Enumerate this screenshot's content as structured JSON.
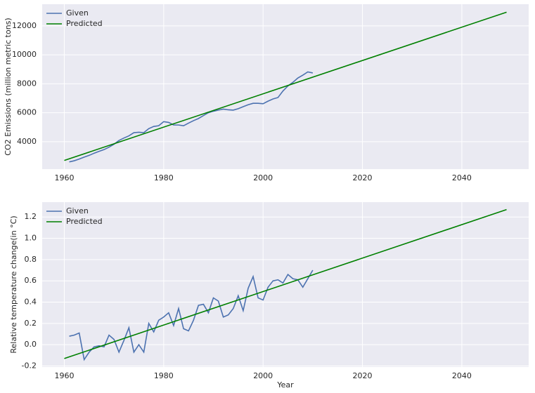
{
  "chart_data": [
    {
      "type": "line",
      "ylabel": "CO2 Emissions (million metric tons)",
      "xlim": [
        1955.55,
        2053.45
      ],
      "xticks": [
        1960,
        1980,
        2000,
        2020,
        2040
      ],
      "ylim": [
        2100,
        13500
      ],
      "yticks": [
        4000,
        6000,
        8000,
        10000,
        12000
      ],
      "grid": true,
      "legend": "upper left",
      "series": [
        {
          "name": "Given",
          "color": "#4c72b0",
          "x": [
            1961,
            1962,
            1963,
            1964,
            1965,
            1966,
            1967,
            1968,
            1969,
            1970,
            1971,
            1972,
            1973,
            1974,
            1975,
            1976,
            1977,
            1978,
            1979,
            1980,
            1981,
            1982,
            1983,
            1984,
            1985,
            1986,
            1987,
            1988,
            1989,
            1990,
            1991,
            1992,
            1993,
            1994,
            1995,
            1996,
            1997,
            1998,
            1999,
            2000,
            2001,
            2002,
            2003,
            2004,
            2005,
            2006,
            2007,
            2008,
            2009,
            2010
          ],
          "values": [
            2600,
            2680,
            2800,
            2930,
            3050,
            3200,
            3330,
            3450,
            3620,
            3820,
            4080,
            4250,
            4400,
            4620,
            4650,
            4620,
            4900,
            5050,
            5100,
            5380,
            5330,
            5150,
            5150,
            5100,
            5280,
            5450,
            5600,
            5800,
            6000,
            6100,
            6180,
            6250,
            6200,
            6180,
            6280,
            6420,
            6550,
            6650,
            6650,
            6620,
            6800,
            6950,
            7050,
            7500,
            7850,
            8100,
            8400,
            8600,
            8820,
            8750
          ]
        },
        {
          "name": "Predicted",
          "color": "#008000",
          "x": [
            1960,
            2049
          ],
          "values": [
            2700,
            12950
          ]
        }
      ]
    },
    {
      "type": "line",
      "xlabel": "Year",
      "ylabel": "Relative temperature change(in °C)",
      "xlim": [
        1955.55,
        2053.45
      ],
      "xticks": [
        1960,
        1980,
        2000,
        2020,
        2040
      ],
      "ylim": [
        -0.21,
        1.34
      ],
      "yticks": [
        -0.2,
        {
          "value": 0,
          "label": "0.0"
        },
        0.2,
        0.4,
        0.6,
        0.8,
        {
          "value": 1,
          "label": "1.0"
        },
        1.2
      ],
      "grid": true,
      "legend": "upper left",
      "series": [
        {
          "name": "Given",
          "color": "#4c72b0",
          "x": [
            1961,
            1962,
            1963,
            1964,
            1965,
            1966,
            1967,
            1968,
            1969,
            1970,
            1971,
            1972,
            1973,
            1974,
            1975,
            1976,
            1977,
            1978,
            1979,
            1980,
            1981,
            1982,
            1983,
            1984,
            1985,
            1986,
            1987,
            1988,
            1989,
            1990,
            1991,
            1992,
            1993,
            1994,
            1995,
            1996,
            1997,
            1998,
            1999,
            2000,
            2001,
            2002,
            2003,
            2004,
            2005,
            2006,
            2007,
            2008,
            2009,
            2010
          ],
          "values": [
            0.08,
            0.09,
            0.11,
            -0.14,
            -0.07,
            -0.02,
            -0.01,
            -0.02,
            0.09,
            0.05,
            -0.07,
            0.04,
            0.16,
            -0.07,
            0.0,
            -0.07,
            0.2,
            0.12,
            0.23,
            0.26,
            0.3,
            0.18,
            0.34,
            0.15,
            0.13,
            0.23,
            0.37,
            0.38,
            0.3,
            0.44,
            0.41,
            0.26,
            0.28,
            0.34,
            0.46,
            0.32,
            0.53,
            0.64,
            0.44,
            0.42,
            0.54,
            0.6,
            0.61,
            0.58,
            0.66,
            0.62,
            0.61,
            0.54,
            0.62,
            0.7
          ]
        },
        {
          "name": "Predicted",
          "color": "#008000",
          "x": [
            1960,
            2049
          ],
          "values": [
            -0.13,
            1.27
          ]
        }
      ]
    }
  ]
}
